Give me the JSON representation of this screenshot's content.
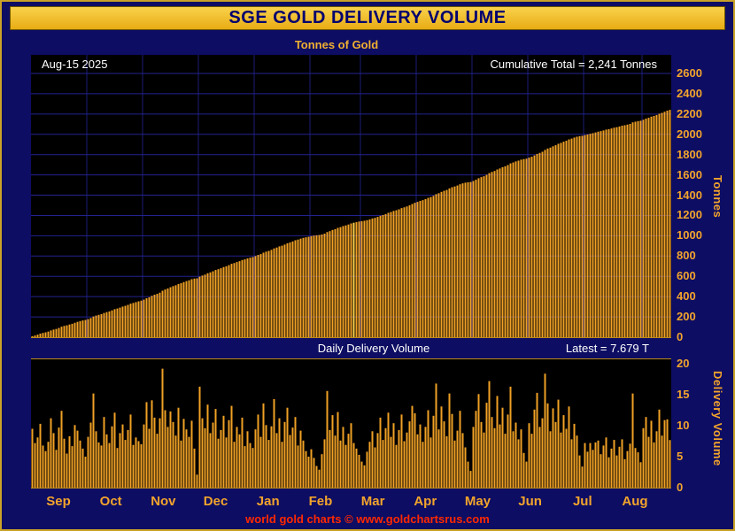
{
  "header": {
    "title": "SGE GOLD DELIVERY VOLUME",
    "subtitle": "Tonnes of Gold"
  },
  "top_panel": {
    "date_label": "Aug-15  2025",
    "annotation": "Cumulative Total = 2,241 Tonnes",
    "y_axis_label": "Tonnes",
    "y_max": 2600,
    "y_ticks": [
      0,
      200,
      400,
      600,
      800,
      1000,
      1200,
      1400,
      1600,
      1800,
      2000,
      2200,
      2400,
      2600
    ]
  },
  "bottom_panel": {
    "title": "Daily Delivery Volume",
    "latest_label": "Latest = 7.679 T",
    "y_axis_label": "Delivery Volume",
    "y_max": 20,
    "y_ticks": [
      0,
      5,
      10,
      15,
      20
    ]
  },
  "footer": {
    "credit": "world gold charts © www.goldchartsrus.com"
  },
  "colors": {
    "bar": "#efa125",
    "bar_highlight": "#ffd54a",
    "grid_h": "#23238f",
    "grid_v": "#1b1b78",
    "gold_text": "#f2a42c",
    "navy_bg": "#0d0d63",
    "header_bg": "#f2c12e",
    "header_text": "#00006e",
    "footer_red": "#ff2800",
    "plot_bg": "#000000"
  },
  "chart_data": {
    "type": "bar",
    "title": "SGE GOLD DELIVERY VOLUME",
    "panels": [
      {
        "name": "Cumulative Total",
        "ylabel": "Tonnes",
        "ylim": [
          0,
          2600
        ],
        "tick_step": 200,
        "final_value": 2241,
        "derivation": "running sum of daily_values"
      },
      {
        "name": "Daily Delivery Volume",
        "ylabel": "Delivery Volume",
        "ylim": [
          0,
          20
        ],
        "tick_step": 5,
        "latest": 7.679
      }
    ],
    "months": [
      "Sep",
      "Oct",
      "Nov",
      "Dec",
      "Jan",
      "Feb",
      "Mar",
      "Apr",
      "May",
      "Jun",
      "Jul",
      "Aug"
    ],
    "month_start_index": [
      0,
      21,
      42,
      63,
      84,
      105,
      124,
      145,
      166,
      187,
      208,
      230
    ],
    "highlight_index": 121,
    "daily_values": [
      9.5,
      7.2,
      8.1,
      10.3,
      6.8,
      5.9,
      7.4,
      11.2,
      8.8,
      6.1,
      9.7,
      12.4,
      7.9,
      5.5,
      8.3,
      6.7,
      10.1,
      9.2,
      7.6,
      6.3,
      5.0,
      8.2,
      10.5,
      15.2,
      9.1,
      7.3,
      6.8,
      11.4,
      8.6,
      7.2,
      9.9,
      12.1,
      6.4,
      8.8,
      10.2,
      7.7,
      9.3,
      11.8,
      6.9,
      8.1,
      7.5,
      7.0,
      10.2,
      13.8,
      9.5,
      14.1,
      11.3,
      8.7,
      11.2,
      19.2,
      12.5,
      9.8,
      12.3,
      10.6,
      8.4,
      12.9,
      7.6,
      11.1,
      9.4,
      8.2,
      10.8,
      6.3,
      2.1,
      16.3,
      11.2,
      9.6,
      13.4,
      8.8,
      10.5,
      12.7,
      7.9,
      9.3,
      11.6,
      8.1,
      10.9,
      13.2,
      7.4,
      9.8,
      8.6,
      11.3,
      6.7,
      9.1,
      7.2,
      6.4,
      9.4,
      11.8,
      8.2,
      13.6,
      10.1,
      7.7,
      9.9,
      14.3,
      8.8,
      11.2,
      7.4,
      10.6,
      12.9,
      8.5,
      9.7,
      11.4,
      6.8,
      9.2,
      7.6,
      5.9,
      5.0,
      6.2,
      4.8,
      3.5,
      2.9,
      5.4,
      7.8,
      15.6,
      9.3,
      11.7,
      8.4,
      12.2,
      7.6,
      9.8,
      6.9,
      8.7,
      10.4,
      7.2,
      6.3,
      5.3,
      4.2,
      3.6,
      5.8,
      7.4,
      9.1,
      6.5,
      8.8,
      11.3,
      7.7,
      9.6,
      12.1,
      8.2,
      10.4,
      6.9,
      9.3,
      11.8,
      7.5,
      8.9,
      10.7,
      13.2,
      12.0,
      8.6,
      10.2,
      7.4,
      9.8,
      12.5,
      8.1,
      11.6,
      16.8,
      9.4,
      13.1,
      10.7,
      8.3,
      15.2,
      11.9,
      7.6,
      9.2,
      12.4,
      8.8,
      6.5,
      4.2,
      2.7,
      9.8,
      12.4,
      15.1,
      10.6,
      8.9,
      13.7,
      17.2,
      11.4,
      9.6,
      14.8,
      10.2,
      12.9,
      8.7,
      11.8,
      16.3,
      9.1,
      10.5,
      7.8,
      9.4,
      5.6,
      4.2,
      10.4,
      8.7,
      12.6,
      15.3,
      9.8,
      11.2,
      18.4,
      13.6,
      9.1,
      12.8,
      10.6,
      14.2,
      8.9,
      11.7,
      9.5,
      13.1,
      7.8,
      10.3,
      8.4,
      5.2,
      3.4,
      7.2,
      5.8,
      7.2,
      6.1,
      7.3,
      7.6,
      5.4,
      6.8,
      8.1,
      4.9,
      6.3,
      7.7,
      5.2,
      6.6,
      7.8,
      4.6,
      5.9,
      7.1,
      15.2,
      6.4,
      5.7,
      4.1,
      9.6,
      11.4,
      8.2,
      10.8,
      7.3,
      9.1,
      12.6,
      8.4,
      10.9,
      11.021,
      7.679
    ]
  }
}
